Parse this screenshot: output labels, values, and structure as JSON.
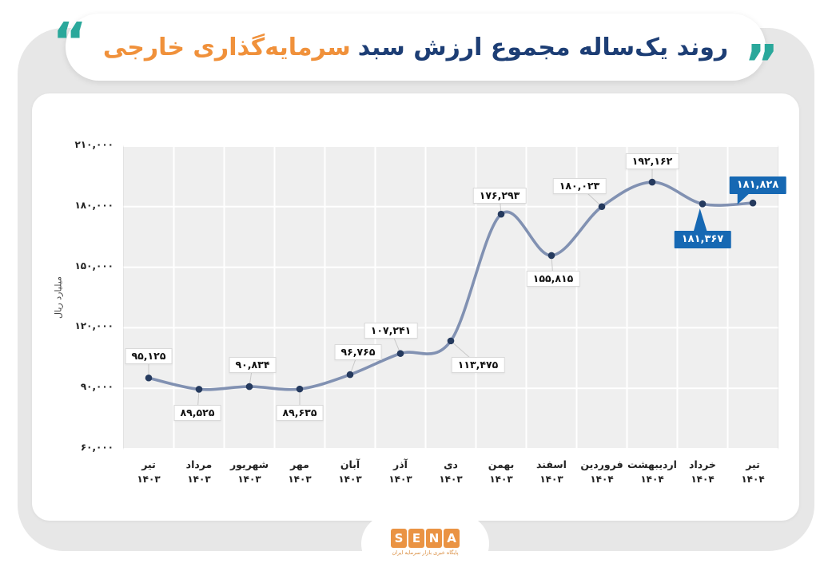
{
  "colors": {
    "title_primary": "#1d3e75",
    "title_accent": "#f0913b",
    "quote_teal": "#2aa89b",
    "line": "#8191b2",
    "marker": "#253a5e",
    "badge_blue": "#1668b3",
    "plot_bg": "#efefef",
    "grid": "#ffffff",
    "logo_orange": "#ea9343"
  },
  "header": {
    "quote_right": "”",
    "title_primary": "روند یک‌ساله مجموع ارزش سبد",
    "title_accent": "سرمایه‌گذاری خارجی",
    "quote_left": "“"
  },
  "chart_data": {
    "type": "line",
    "title": "روند یک‌ساله مجموع ارزش سبد سرمایه‌گذاری خارجی",
    "ylabel": "میلیارد ریال",
    "ylim": [
      60000,
      210000
    ],
    "grid": true,
    "legend": "none",
    "yticks": [
      {
        "value": 210000,
        "label": "۲۱۰,۰۰۰"
      },
      {
        "value": 180000,
        "label": "۱۸۰,۰۰۰"
      },
      {
        "value": 150000,
        "label": "۱۵۰,۰۰۰"
      },
      {
        "value": 120000,
        "label": "۱۲۰,۰۰۰"
      },
      {
        "value": 90000,
        "label": "۹۰,۰۰۰"
      },
      {
        "value": 60000,
        "label": "۶۰,۰۰۰"
      }
    ],
    "points": [
      {
        "month": "تیر",
        "year": "۱۴۰۳",
        "value": 95125,
        "label": "۹۵,۱۲۵",
        "label_pos": "above",
        "style": "box"
      },
      {
        "month": "مرداد",
        "year": "۱۴۰۳",
        "value": 89525,
        "label": "۸۹,۵۲۵",
        "label_pos": "below",
        "style": "box"
      },
      {
        "month": "شهریور",
        "year": "۱۴۰۳",
        "value": 90834,
        "label": "۹۰,۸۳۴",
        "label_pos": "above",
        "style": "box"
      },
      {
        "month": "مهر",
        "year": "۱۴۰۳",
        "value": 89635,
        "label": "۸۹,۶۳۵",
        "label_pos": "below",
        "style": "box"
      },
      {
        "month": "آبان",
        "year": "۱۴۰۳",
        "value": 96765,
        "label": "۹۶,۷۶۵",
        "label_pos": "above",
        "style": "box"
      },
      {
        "month": "آذر",
        "year": "۱۴۰۳",
        "value": 107241,
        "label": "۱۰۷,۲۴۱",
        "label_pos": "above",
        "style": "box"
      },
      {
        "month": "دی",
        "year": "۱۴۰۳",
        "value": 113475,
        "label": "۱۱۳,۴۷۵",
        "label_pos": "below-right",
        "style": "box"
      },
      {
        "month": "بهمن",
        "year": "۱۴۰۳",
        "value": 176293,
        "label": "۱۷۶,۲۹۳",
        "label_pos": "above",
        "style": "box"
      },
      {
        "month": "اسفند",
        "year": "۱۴۰۳",
        "value": 155815,
        "label": "۱۵۵,۸۱۵",
        "label_pos": "below",
        "style": "box"
      },
      {
        "month": "فروردین",
        "year": "۱۴۰۴",
        "value": 180023,
        "label": "۱۸۰,۰۲۳",
        "label_pos": "above-left",
        "style": "box"
      },
      {
        "month": "اردیبهشت",
        "year": "۱۴۰۴",
        "value": 192162,
        "label": "۱۹۲,۱۶۲",
        "label_pos": "above",
        "style": "box"
      },
      {
        "month": "خرداد",
        "year": "۱۴۰۴",
        "value": 181367,
        "label": "۱۸۱,۳۶۷",
        "label_pos": "below",
        "style": "badge"
      },
      {
        "month": "تیر",
        "year": "۱۴۰۴",
        "value": 181828,
        "label": "۱۸۱,۸۲۸",
        "label_pos": "above",
        "style": "badge"
      }
    ]
  },
  "footer": {
    "logo_letters": [
      "S",
      "E",
      "N",
      "A"
    ],
    "logo_tagline": "پایگاه خبری بازار سرمایه ایران"
  }
}
